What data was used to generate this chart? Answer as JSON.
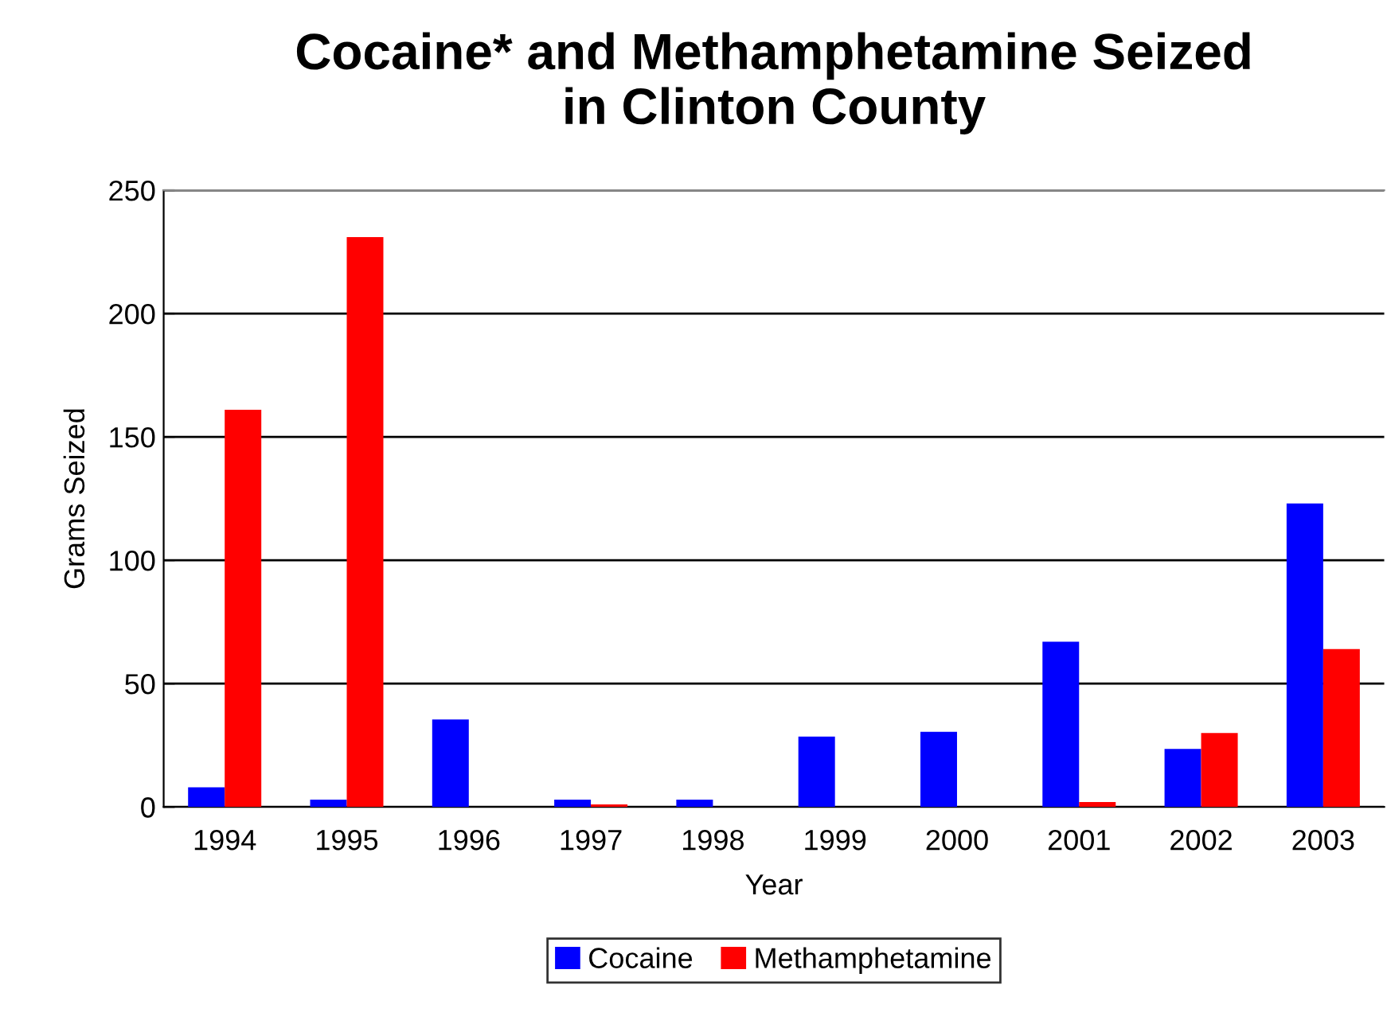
{
  "chart_data": {
    "type": "bar",
    "title": "Cocaine* and Methamphetamine Seized\nin Clinton County",
    "xlabel": "Year",
    "ylabel": "Grams Seized",
    "categories": [
      "1994",
      "1995",
      "1996",
      "1997",
      "1998",
      "1999",
      "2000",
      "2001",
      "2002",
      "2003"
    ],
    "series": [
      {
        "name": "Cocaine",
        "color": "#0000ff",
        "values": [
          8,
          3,
          35.5,
          3,
          3,
          28.5,
          30.5,
          67,
          23.5,
          123
        ]
      },
      {
        "name": "Methamphetamine",
        "color": "#ff0000",
        "values": [
          161,
          231,
          null,
          1,
          null,
          null,
          null,
          2,
          30,
          64
        ]
      }
    ],
    "ylim": [
      0,
      250
    ],
    "yticks": [
      0,
      50,
      100,
      150,
      200,
      250
    ],
    "grid": "y",
    "legend": "bottom"
  }
}
